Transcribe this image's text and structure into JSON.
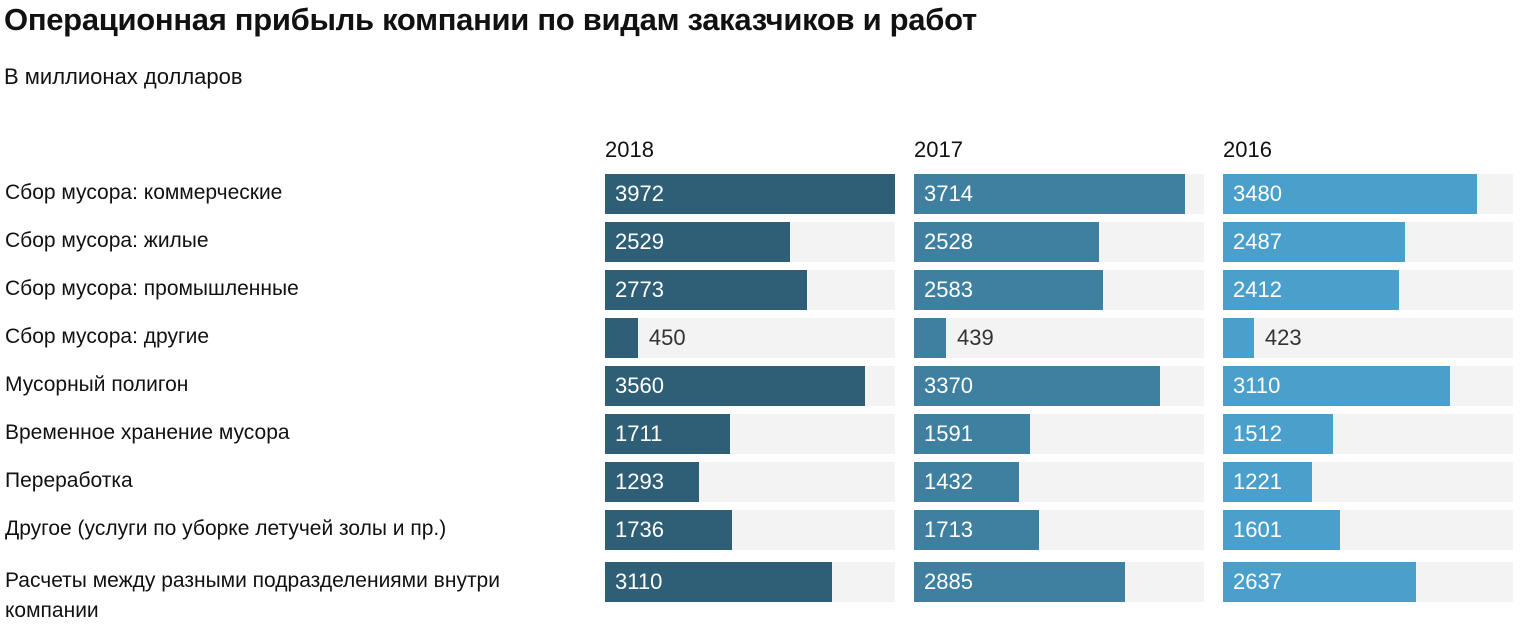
{
  "chart_data": {
    "type": "bar",
    "title": "Операционная прибыль компании по видам заказчиков и работ",
    "subtitle": "В миллионах долларов",
    "categories": [
      "Сбор мусора: коммерческие",
      "Сбор мусора: жилые",
      "Сбор мусора: промышленные",
      "Сбор мусора: другие",
      "Мусорный полигон",
      "Временное хранение мусора",
      "Переработка",
      "Другое (услуги по уборке летучей золы и пр.)",
      "Расчеты между разными подразделениями внутри компании"
    ],
    "series": [
      {
        "name": "2018",
        "color": "#2f5f77",
        "values": [
          3972,
          2529,
          2773,
          450,
          3560,
          1711,
          1293,
          1736,
          3110
        ]
      },
      {
        "name": "2017",
        "color": "#3f80a0",
        "values": [
          3714,
          2528,
          2583,
          439,
          3370,
          1591,
          1432,
          1713,
          2885
        ]
      },
      {
        "name": "2016",
        "color": "#4b9fcb",
        "values": [
          3480,
          2487,
          2412,
          423,
          3110,
          1512,
          1221,
          1601,
          2637
        ]
      }
    ],
    "xlim": [
      0,
      3972
    ],
    "track_color": "#f3f3f3",
    "grid": false,
    "legend": "none"
  }
}
